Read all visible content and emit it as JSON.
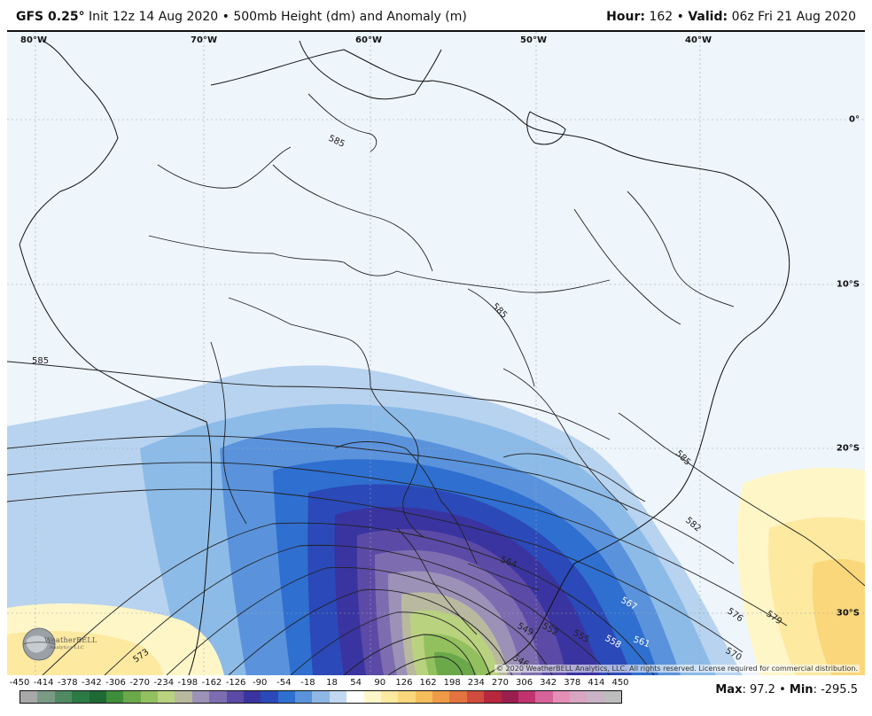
{
  "header": {
    "model": "GFS 0.25",
    "init_text": "Init 12z 14 Aug 2020",
    "bullet": "•",
    "product": "500mb Height (dm) and Anomaly (m)",
    "hour_label": "Hour",
    "hour_value": "162",
    "valid_label": "Valid",
    "valid_value": "06z Fri 21 Aug 2020"
  },
  "map": {
    "longitude_labels": [
      "80°W",
      "70°W",
      "60°W",
      "50°W",
      "40°W"
    ],
    "latitude_labels": [
      "0°",
      "10°S",
      "20°S",
      "30°S"
    ],
    "contour_labels": [
      "585",
      "585",
      "585",
      "585",
      "582",
      "579",
      "576",
      "573",
      "570",
      "567",
      "564",
      "561",
      "558",
      "555",
      "552",
      "549",
      "546"
    ],
    "copyright": "© 2020 WeatherBELL Analytics, LLC. All rights reserved. License required for commercial distribution.",
    "logo_text": "WeatherBELL",
    "logo_subtext": "Analytics LLC"
  },
  "colorbar": {
    "ticks": [
      "-450",
      "-414",
      "-378",
      "-342",
      "-306",
      "-270",
      "-234",
      "-198",
      "-162",
      "-126",
      "-90",
      "-54",
      "-18",
      "18",
      "54",
      "90",
      "126",
      "162",
      "198",
      "234",
      "270",
      "306",
      "342",
      "378",
      "414",
      "450"
    ],
    "colors": [
      "#a8a8a8",
      "#7a9a86",
      "#4f8a63",
      "#2c7a45",
      "#1f6a34",
      "#3f8d3a",
      "#6aa84a",
      "#93c05f",
      "#b9d27f",
      "#b9b9a0",
      "#9c92b8",
      "#7d6db0",
      "#5b4aa6",
      "#3a34a0",
      "#2b49b8",
      "#2f6fd0",
      "#5a93dc",
      "#8fb7e6",
      "#c0d8f0",
      "#ffffff",
      "#fff6c8",
      "#fde9a0",
      "#f9d77a",
      "#f5be5a",
      "#ef9a48",
      "#e3743f",
      "#d14b3e",
      "#b8273e",
      "#9a1f4f",
      "#c0336f",
      "#d6629a",
      "#e38fb6",
      "#d9a6c2",
      "#c9b3c4",
      "#bdbdbd"
    ]
  },
  "stats": {
    "max_label": "Max",
    "max_value": "97.2",
    "min_label": "Min",
    "min_value": "-295.5"
  }
}
